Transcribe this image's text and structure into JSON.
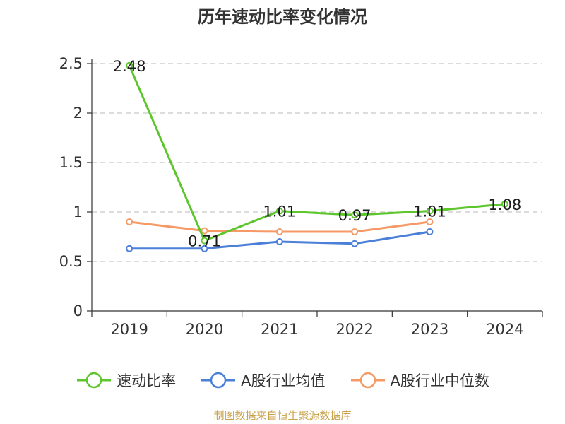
{
  "title": "历年速动比率变化情况",
  "source": "制图数据来自恒生聚源数据库",
  "chart_data": {
    "type": "line",
    "title": "历年速动比率变化情况",
    "categories": [
      "2019",
      "2020",
      "2021",
      "2022",
      "2023",
      "2024"
    ],
    "ylim": [
      0,
      2.5
    ],
    "yticks": [
      0,
      0.5,
      1,
      1.5,
      2,
      2.5
    ],
    "ytick_labels": [
      "0",
      "0.5",
      "1",
      "1.5",
      "2",
      "2.5"
    ],
    "grid": true,
    "legend_position": "bottom",
    "series": [
      {
        "name": "速动比率",
        "color": "#5cc62c",
        "values": [
          2.48,
          0.71,
          1.01,
          0.97,
          1.01,
          1.08
        ],
        "labels": [
          "2.48",
          "0.71",
          "1.01",
          "0.97",
          "1.01",
          "1.08"
        ],
        "show_labels": true
      },
      {
        "name": "A股行业均值",
        "color": "#4b7fd8",
        "values": [
          0.63,
          0.63,
          0.7,
          0.68,
          0.8,
          null
        ],
        "show_labels": false
      },
      {
        "name": "A股行业中位数",
        "color": "#f59a66",
        "values": [
          0.9,
          0.81,
          0.8,
          0.8,
          0.9,
          null
        ],
        "show_labels": false
      }
    ]
  }
}
